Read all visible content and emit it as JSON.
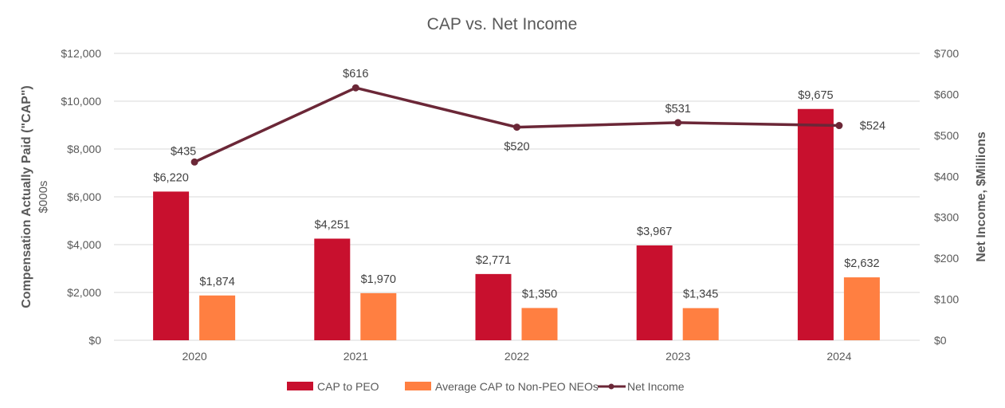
{
  "chart_data": {
    "type": "bar+line",
    "title": "CAP vs. Net Income",
    "categories": [
      "2020",
      "2021",
      "2022",
      "2023",
      "2024"
    ],
    "series": [
      {
        "name": "CAP to PEO",
        "type": "bar",
        "axis": "left",
        "color": "#C8102E",
        "values": [
          6220,
          4251,
          2771,
          3967,
          9675
        ],
        "labels": [
          "$6,220",
          "$4,251",
          "$2,771",
          "$3,967",
          "$9,675"
        ]
      },
      {
        "name": "Average CAP to Non-PEO NEOs",
        "type": "bar",
        "axis": "left",
        "color": "#FF7F41",
        "values": [
          1874,
          1970,
          1350,
          1345,
          2632
        ],
        "labels": [
          "$1,874",
          "$1,970",
          "$1,350",
          "$1,345",
          "$2,632"
        ]
      },
      {
        "name": "Net Income",
        "type": "line",
        "axis": "right",
        "color": "#6B2737",
        "values": [
          435,
          616,
          520,
          531,
          524
        ],
        "labels": [
          "$435",
          "$616",
          "$520",
          "$531",
          "$524"
        ]
      }
    ],
    "ylabel": "Compensation Actually Paid (\"CAP\")",
    "ylabel_sub": "$000s",
    "ylim": [
      0,
      12000
    ],
    "yticks": [
      "$0",
      "$2,000",
      "$4,000",
      "$6,000",
      "$8,000",
      "$10,000",
      "$12,000"
    ],
    "y2label": "Net Income, $Millions",
    "y2lim": [
      0,
      700
    ],
    "y2ticks": [
      "$0",
      "$100",
      "$200",
      "$300",
      "$400",
      "$500",
      "$600",
      "$700"
    ],
    "grid": true,
    "legend": "bottom"
  }
}
